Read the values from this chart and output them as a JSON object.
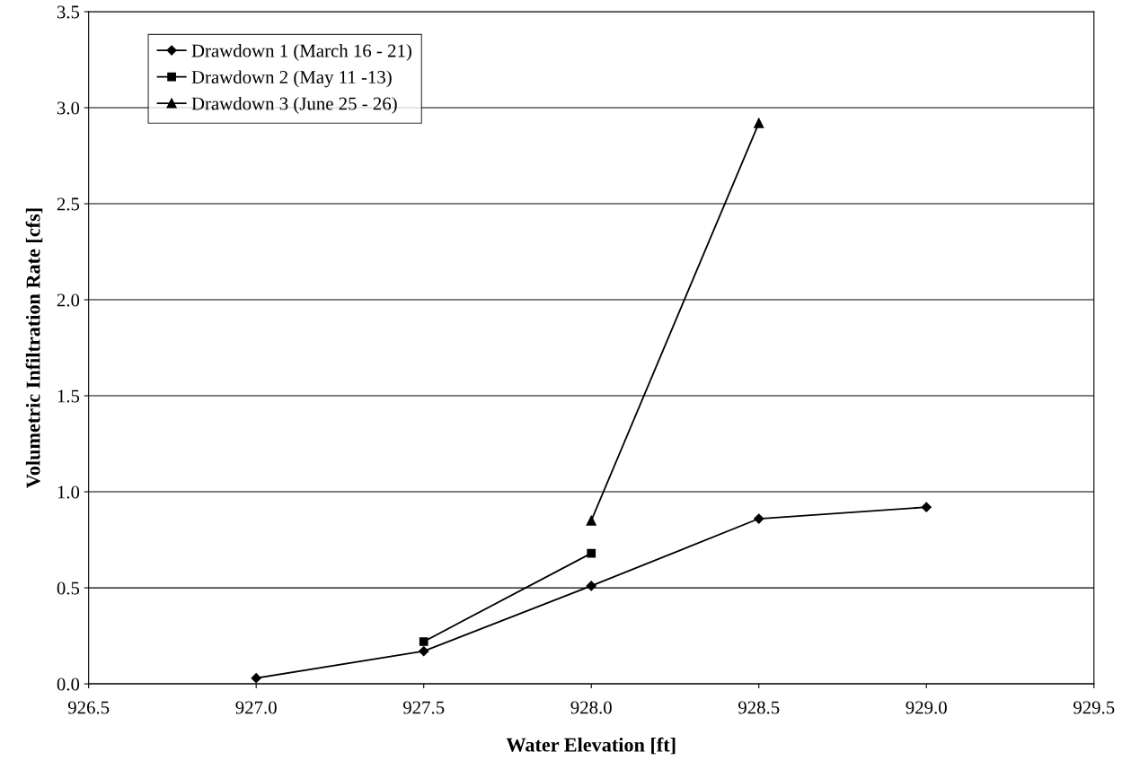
{
  "chart_data": {
    "type": "line",
    "xlabel": "Water Elevation [ft]",
    "ylabel": "Volumetric Infiltration Rate [cfs]",
    "xlim": [
      926.5,
      929.5
    ],
    "xticks": [
      {
        "value": 926.5,
        "label": "926.5"
      },
      {
        "value": 927.0,
        "label": "927.0"
      },
      {
        "value": 927.5,
        "label": "927.5"
      },
      {
        "value": 928.0,
        "label": "928.0"
      },
      {
        "value": 928.5,
        "label": "928.5"
      },
      {
        "value": 929.0,
        "label": "929.0"
      },
      {
        "value": 929.5,
        "label": "929.5"
      }
    ],
    "ylim": [
      0,
      3.5
    ],
    "yticks": [
      {
        "value": 0,
        "label": "0.0"
      },
      {
        "value": 0.5,
        "label": "0.5"
      },
      {
        "value": 1.0,
        "label": "1.0"
      },
      {
        "value": 1.5,
        "label": "1.5"
      },
      {
        "value": 2.0,
        "label": "2.0"
      },
      {
        "value": 2.5,
        "label": "2.5"
      },
      {
        "value": 3.0,
        "label": "3.0"
      },
      {
        "value": 3.5,
        "label": "3.5"
      }
    ],
    "grid": "y",
    "legend": "top left",
    "line_style": "solid",
    "series": [
      {
        "name": "Drawdown 1 (March 16 - 21)",
        "color": "#000000",
        "marker": "diamond",
        "x": [
          927.0,
          927.5,
          928.0,
          928.5,
          929.0
        ],
        "values": [
          0.03,
          0.17,
          0.51,
          0.86,
          0.92
        ]
      },
      {
        "name": "Drawdown 2 (May 11 -13)",
        "color": "#000000",
        "marker": "square",
        "x": [
          927.5,
          928.0
        ],
        "values": [
          0.22,
          0.68
        ]
      },
      {
        "name": "Drawdown 3 (June 25 - 26)",
        "color": "#000000",
        "marker": "triangle",
        "x": [
          928.0,
          928.5
        ],
        "values": [
          0.85,
          2.92
        ]
      }
    ]
  }
}
